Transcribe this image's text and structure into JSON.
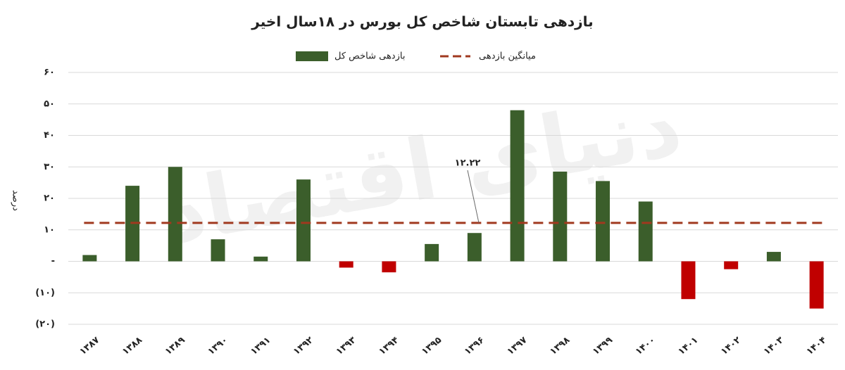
{
  "chart_data": {
    "type": "bar",
    "title": "بازدهی تابستان شاخص کل بورس در ۱۸سال اخیر",
    "y_label": "درصد",
    "watermark": "دنیای اقتصاد",
    "categories": [
      "۱۳۸۷",
      "۱۳۸۸",
      "۱۳۸۹",
      "۱۳۹۰",
      "۱۳۹۱",
      "۱۳۹۲",
      "۱۳۹۳",
      "۱۳۹۴",
      "۱۳۹۵",
      "۱۳۹۶",
      "۱۳۹۷",
      "۱۳۹۸",
      "۱۳۹۹",
      "۱۴۰۰",
      "۱۴۰۱",
      "۱۴۰۲",
      "۱۴۰۳",
      "۱۴۰۴"
    ],
    "series": [
      {
        "name": "بازدهی شاخص کل",
        "color": "#3b5e2b",
        "negative_color": "#c00000",
        "values": [
          2,
          24,
          30,
          7,
          1.5,
          26,
          -2,
          -3.5,
          5.5,
          9,
          48,
          28.5,
          25.5,
          19,
          -12,
          -2.5,
          3,
          -15
        ]
      }
    ],
    "reference_line": {
      "name": "میانگین بازدهی",
      "value": 12.22,
      "value_label": "۱۲.۲۲",
      "color": "#a0391f",
      "dashed": true
    },
    "ylim": [
      -20,
      60
    ],
    "yticks": [
      {
        "value": -20,
        "label": "(۲۰)"
      },
      {
        "value": -10,
        "label": "(۱۰)"
      },
      {
        "value": 0,
        "label": "-"
      },
      {
        "value": 10,
        "label": "۱۰"
      },
      {
        "value": 20,
        "label": "۲۰"
      },
      {
        "value": 30,
        "label": "۳۰"
      },
      {
        "value": 40,
        "label": "۴۰"
      },
      {
        "value": 50,
        "label": "۵۰"
      },
      {
        "value": 60,
        "label": "۶۰"
      }
    ],
    "grid": true
  }
}
